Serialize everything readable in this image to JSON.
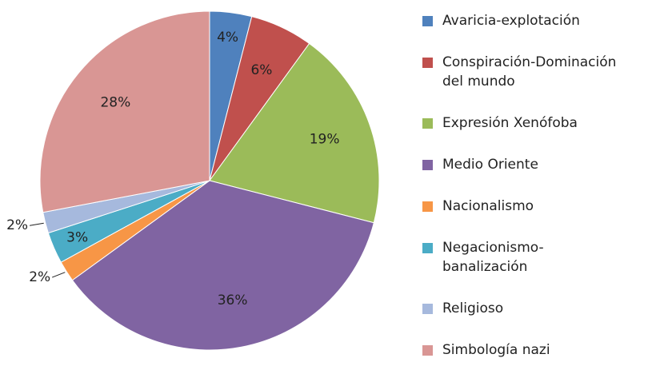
{
  "chart_data": {
    "type": "pie",
    "categories": [
      "Avaricia-explotación",
      "Conspiración-Dominación\ndel mundo",
      "Expresión Xenófoba",
      "Medio Oriente",
      "Nacionalismo",
      "Negacionismo-\nbanalización",
      "Religioso",
      "Simbología nazi"
    ],
    "values": [
      4,
      6,
      19,
      36,
      2,
      3,
      2,
      28
    ],
    "value_labels": [
      "4%",
      "6%",
      "19%",
      "36%",
      "2%",
      "3%",
      "2%",
      "28%"
    ],
    "colors": [
      "#4f81bd",
      "#c0504d",
      "#9bbb59",
      "#8064a2",
      "#f79646",
      "#4bacc6",
      "#a6b9dd",
      "#d99694"
    ],
    "legend": "right"
  }
}
